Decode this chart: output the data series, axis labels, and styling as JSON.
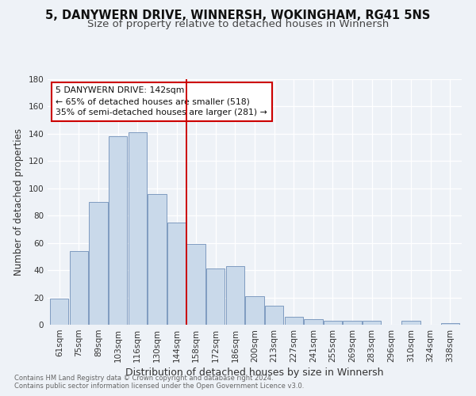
{
  "title": "5, DANYWERN DRIVE, WINNERSH, WOKINGHAM, RG41 5NS",
  "subtitle": "Size of property relative to detached houses in Winnersh",
  "xlabel": "Distribution of detached houses by size in Winnersh",
  "ylabel": "Number of detached properties",
  "footnote1": "Contains HM Land Registry data © Crown copyright and database right 2024.",
  "footnote2": "Contains public sector information licensed under the Open Government Licence v3.0.",
  "bar_labels": [
    "61sqm",
    "75sqm",
    "89sqm",
    "103sqm",
    "116sqm",
    "130sqm",
    "144sqm",
    "158sqm",
    "172sqm",
    "186sqm",
    "200sqm",
    "213sqm",
    "227sqm",
    "241sqm",
    "255sqm",
    "269sqm",
    "283sqm",
    "296sqm",
    "310sqm",
    "324sqm",
    "338sqm"
  ],
  "bar_values": [
    19,
    54,
    90,
    138,
    141,
    96,
    75,
    59,
    41,
    43,
    21,
    14,
    6,
    4,
    3,
    3,
    3,
    0,
    3,
    0,
    1
  ],
  "bar_color": "#c9d9ea",
  "bar_edgecolor": "#7090b8",
  "ylim": [
    0,
    180
  ],
  "yticks": [
    0,
    20,
    40,
    60,
    80,
    100,
    120,
    140,
    160,
    180
  ],
  "vline_x": 6.5,
  "vline_color": "#cc0000",
  "annotation_title": "5 DANYWERN DRIVE: 142sqm",
  "annotation_line1": "← 65% of detached houses are smaller (518)",
  "annotation_line2": "35% of semi-detached houses are larger (281) →",
  "annotation_box_color": "#cc0000",
  "bg_color": "#eef2f7",
  "grid_color": "#ffffff",
  "title_fontsize": 10.5,
  "subtitle_fontsize": 9.5,
  "axis_label_fontsize": 8.5,
  "tick_fontsize": 7.5,
  "footnote_fontsize": 6.0
}
